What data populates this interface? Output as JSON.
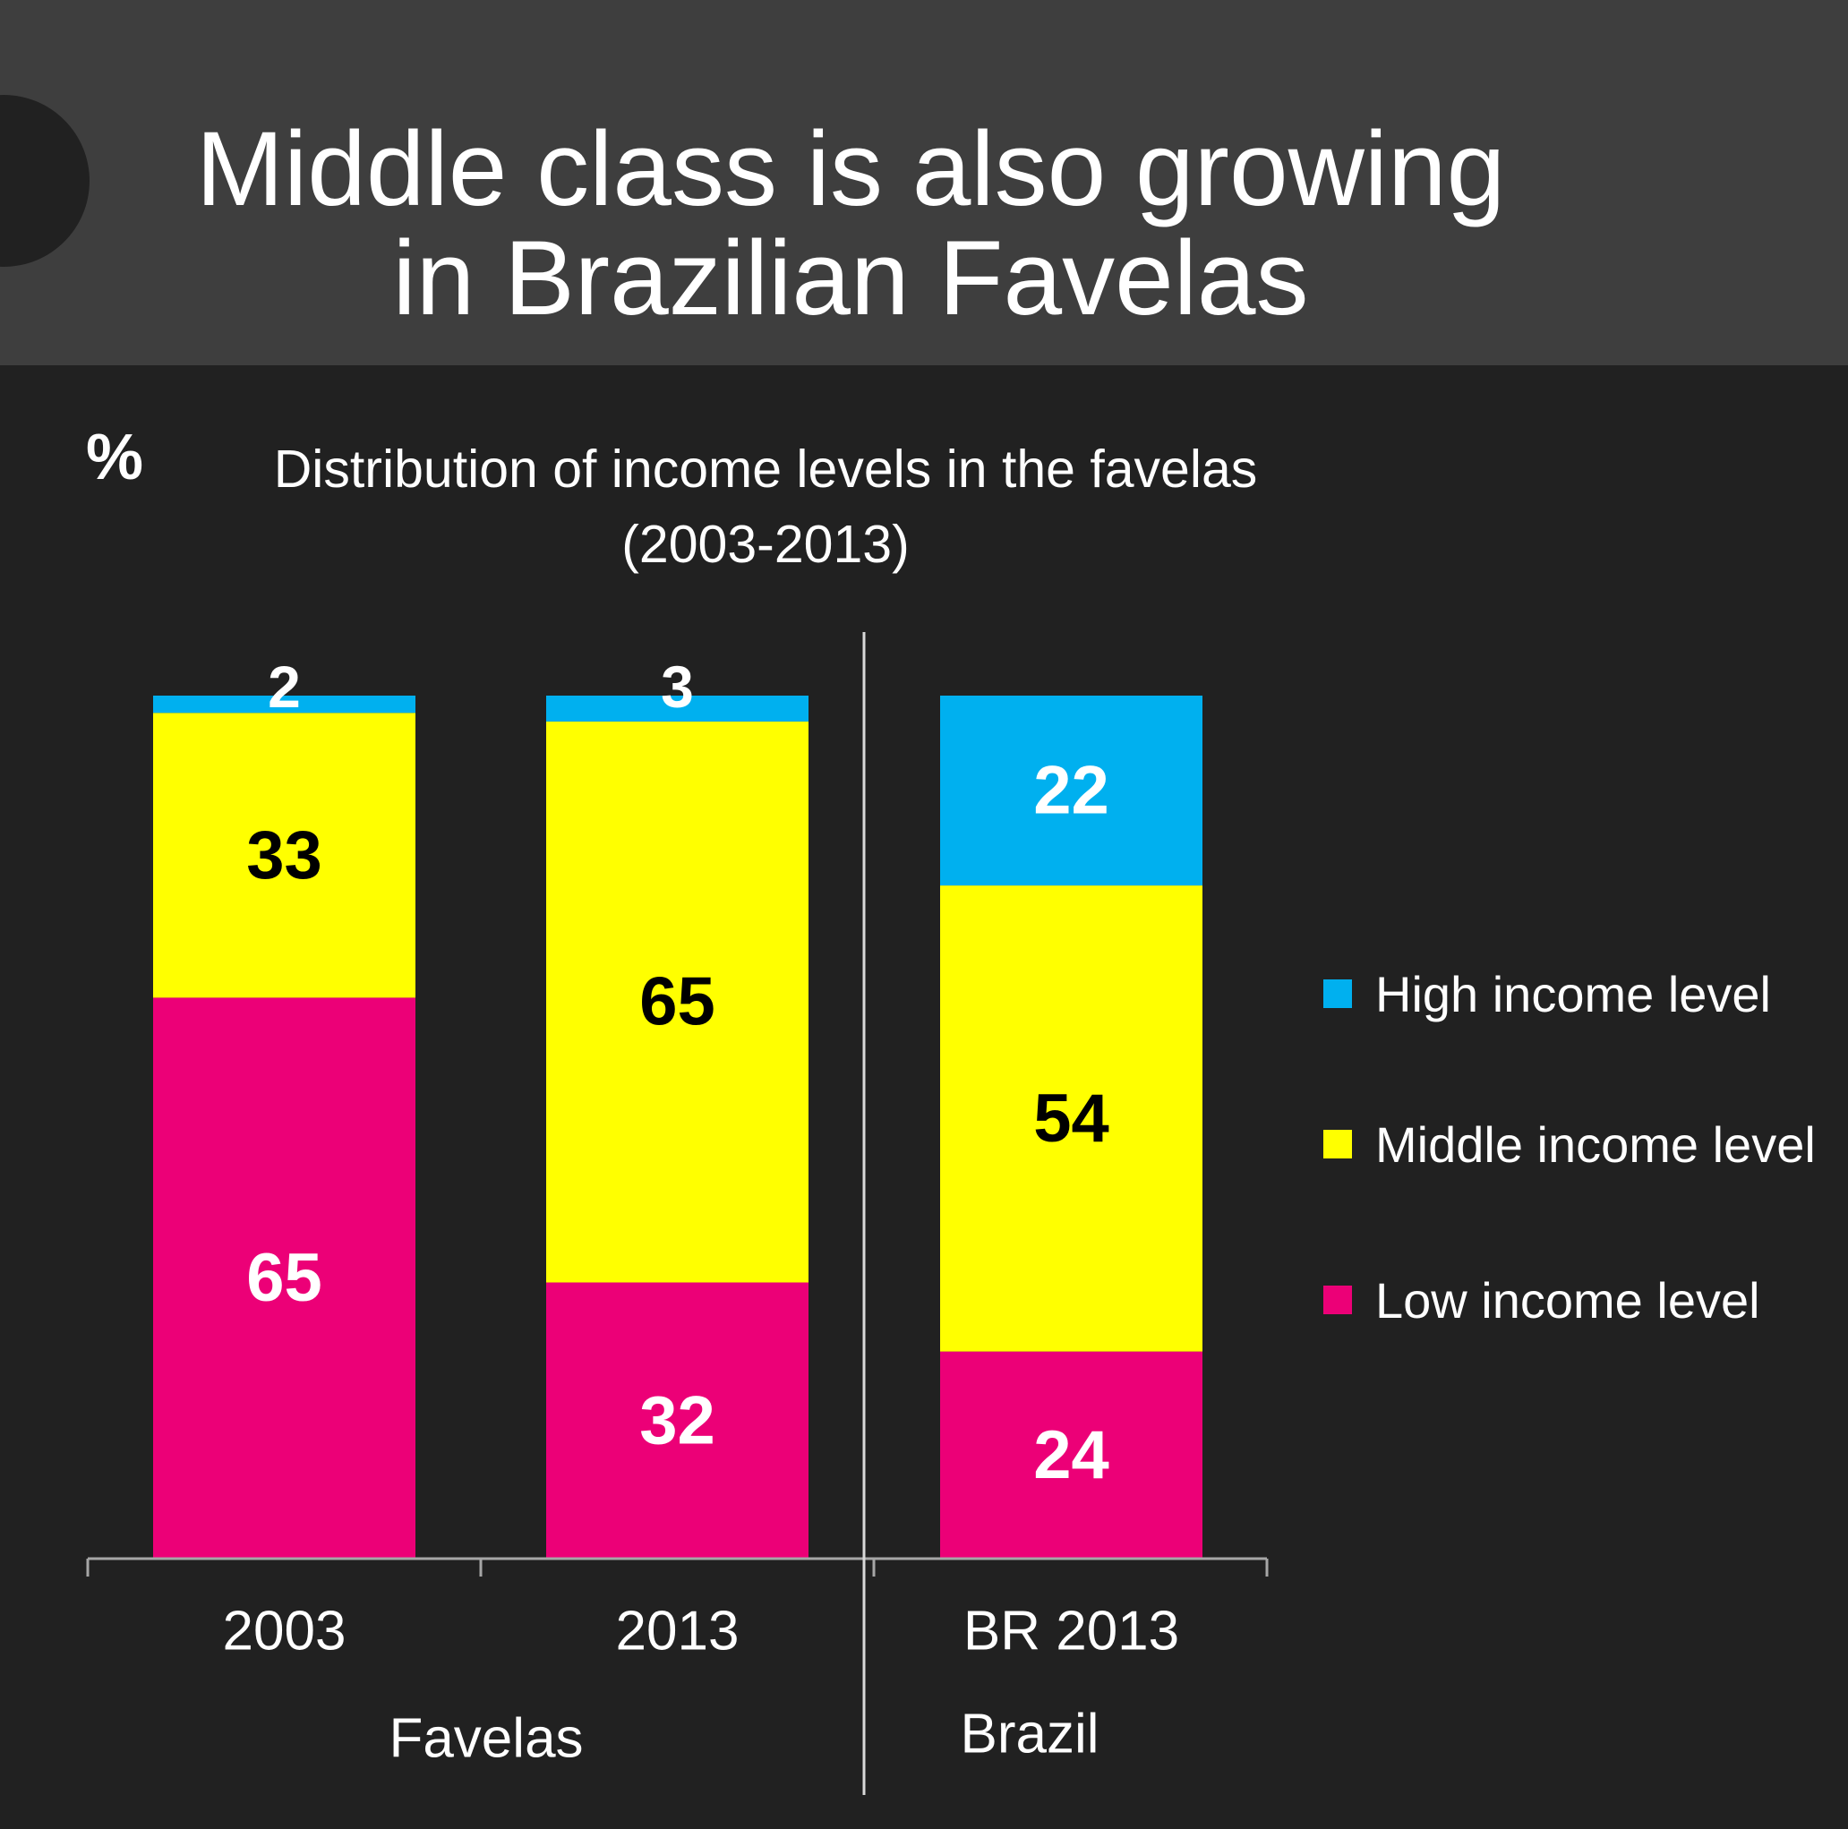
{
  "title": {
    "line1": "Middle class is also growing",
    "line2": "in Brazilian Favelas"
  },
  "unit": "%",
  "subtitle": {
    "line1": "Distribution of income levels in the favelas",
    "line2": "(2003-2013)"
  },
  "colors": {
    "background": "#212121",
    "header": "#3e3e3e",
    "high": "#00b0ef",
    "middle": "#ffff00",
    "low": "#ec0077"
  },
  "chart_data": {
    "type": "bar",
    "stacked": true,
    "categories": [
      "2003",
      "2013",
      "BR 2013"
    ],
    "groups": [
      {
        "label": "Favelas",
        "categories": [
          "2003",
          "2013"
        ]
      },
      {
        "label": "Brazil",
        "categories": [
          "BR 2013"
        ]
      }
    ],
    "series": [
      {
        "name": "Low income level",
        "color": "#ec0077",
        "values": [
          65,
          32,
          24
        ]
      },
      {
        "name": "Middle income level",
        "color": "#ffff00",
        "values": [
          33,
          65,
          54
        ]
      },
      {
        "name": "High income level",
        "color": "#00b0ef",
        "values": [
          2,
          3,
          22
        ]
      }
    ],
    "ylim": [
      0,
      100
    ],
    "grid": false,
    "legend_position": "right"
  }
}
